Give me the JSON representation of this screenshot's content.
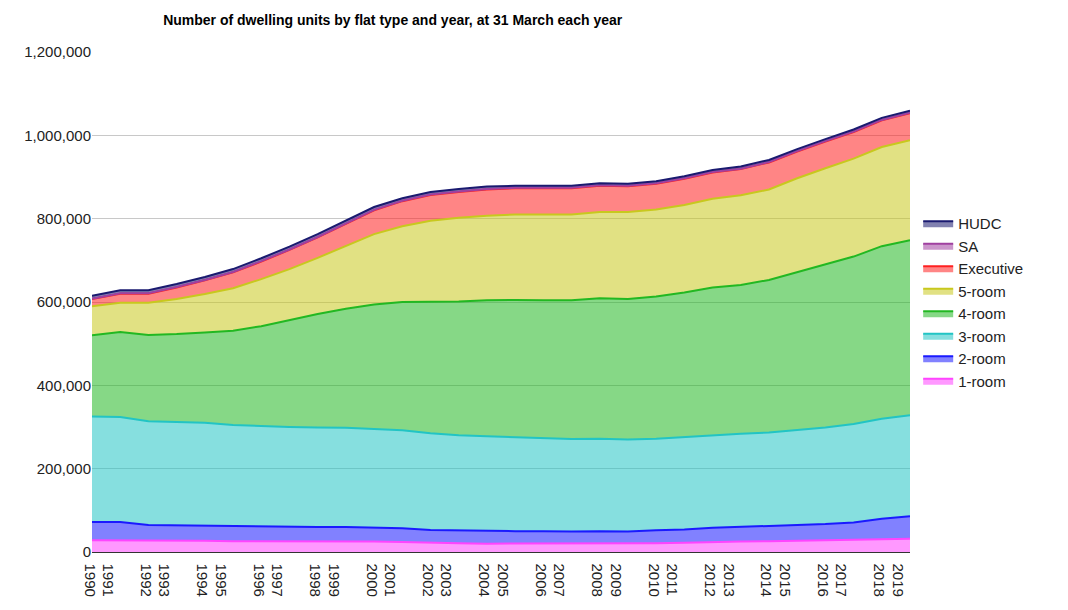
{
  "chart_data": {
    "type": "area",
    "title": "Number of dwelling units by flat type and year, at 31 March each year",
    "stacked": true,
    "grid": true,
    "legend": "right",
    "x": [
      1990,
      1991,
      1992,
      1993,
      1994,
      1995,
      1996,
      1997,
      1998,
      1999,
      2000,
      2001,
      2002,
      2003,
      2004,
      2005,
      2006,
      2007,
      2008,
      2009,
      2010,
      2011,
      2012,
      2013,
      2014,
      2015,
      2016,
      2017,
      2018,
      2019
    ],
    "xlim": [
      1990,
      2019
    ],
    "xticks": [
      1990,
      1991,
      1992,
      1993,
      1994,
      1995,
      1996,
      1997,
      1998,
      1999,
      2000,
      2001,
      2002,
      2003,
      2004,
      2005,
      2006,
      2007,
      2008,
      2009,
      2010,
      2011,
      2012,
      2013,
      2014,
      2015,
      2016,
      2017,
      2018,
      2019
    ],
    "ylim": [
      0,
      1200000
    ],
    "yticks": [
      0,
      {
        "value": 200000,
        "label": "200,000"
      },
      {
        "value": 400000,
        "label": "400,000"
      },
      {
        "value": 600000,
        "label": "600,000"
      },
      {
        "value": 800000,
        "label": "800,000"
      },
      {
        "value": 1000000,
        "label": "1,000,000"
      },
      {
        "value": 1200000,
        "label": "1,200,000"
      }
    ],
    "series": [
      {
        "name": "1-room",
        "color": "#ff44ff",
        "values": [
          28000,
          28000,
          27000,
          27000,
          27000,
          26000,
          26000,
          26000,
          26000,
          25000,
          25000,
          24000,
          22000,
          21000,
          20000,
          20000,
          20000,
          20000,
          20000,
          20000,
          21000,
          22000,
          24000,
          25000,
          26000,
          27000,
          28000,
          29000,
          31000,
          32000
        ]
      },
      {
        "name": "2-room",
        "color": "#1a1aff",
        "values": [
          44000,
          44000,
          38000,
          37000,
          37000,
          36000,
          35000,
          34000,
          34000,
          35000,
          34000,
          33000,
          31000,
          31000,
          30000,
          30000,
          30000,
          29000,
          30000,
          29000,
          31000,
          32000,
          34000,
          35000,
          36000,
          37000,
          39000,
          42000,
          49000,
          54000
        ]
      },
      {
        "name": "3-room",
        "color": "#22c4c4",
        "values": [
          253000,
          252000,
          249000,
          248000,
          246000,
          243000,
          241000,
          240000,
          239000,
          238000,
          236000,
          235000,
          232000,
          228000,
          228000,
          226000,
          223000,
          222000,
          222000,
          221000,
          220000,
          222000,
          223000,
          224000,
          225000,
          229000,
          232000,
          236000,
          240000,
          242000
        ]
      },
      {
        "name": "4-room",
        "color": "#22b822",
        "values": [
          195000,
          204000,
          207000,
          211000,
          217000,
          226000,
          240000,
          257000,
          272000,
          286000,
          299000,
          308000,
          316000,
          321000,
          326000,
          329000,
          331000,
          333000,
          337000,
          337000,
          341000,
          347000,
          354000,
          357000,
          366000,
          379000,
          391000,
          402000,
          414000,
          420000
        ]
      },
      {
        "name": "5-room",
        "color": "#c8c81e",
        "values": [
          70000,
          70000,
          77000,
          84000,
          92000,
          102000,
          113000,
          122000,
          135000,
          151000,
          169000,
          182000,
          194000,
          201000,
          203000,
          205000,
          206000,
          206000,
          207000,
          209000,
          209000,
          210000,
          213000,
          215000,
          217000,
          225000,
          231000,
          235000,
          238000,
          240000
        ]
      },
      {
        "name": "Executive",
        "color": "#ff2020",
        "values": [
          17000,
          22000,
          22000,
          28000,
          33000,
          38000,
          42000,
          46000,
          49000,
          52000,
          57000,
          60000,
          62000,
          62000,
          63000,
          63000,
          63000,
          63000,
          63000,
          62000,
          62000,
          63000,
          63000,
          63000,
          65000,
          64000,
          64000,
          64000,
          64000,
          65000
        ]
      },
      {
        "name": "SA",
        "color": "#a040a0",
        "values": [
          1000,
          1000,
          1000,
          1000,
          1000,
          1000,
          1000,
          1000,
          1000,
          1000,
          1000,
          1000,
          1000,
          1000,
          1000,
          1000,
          1000,
          1000,
          1000,
          1000,
          1000,
          1000,
          1000,
          1000,
          1000,
          1000,
          1000,
          1000,
          1000,
          1000
        ]
      },
      {
        "name": "HUDC",
        "color": "#1a1a70",
        "values": [
          7000,
          7000,
          7000,
          7000,
          7000,
          7000,
          7000,
          7000,
          7000,
          7000,
          7000,
          6000,
          6000,
          6000,
          6000,
          5000,
          5000,
          5000,
          5000,
          5000,
          5000,
          5000,
          5000,
          5000,
          5000,
          5000,
          5000,
          5000,
          5000,
          5000
        ]
      }
    ]
  }
}
